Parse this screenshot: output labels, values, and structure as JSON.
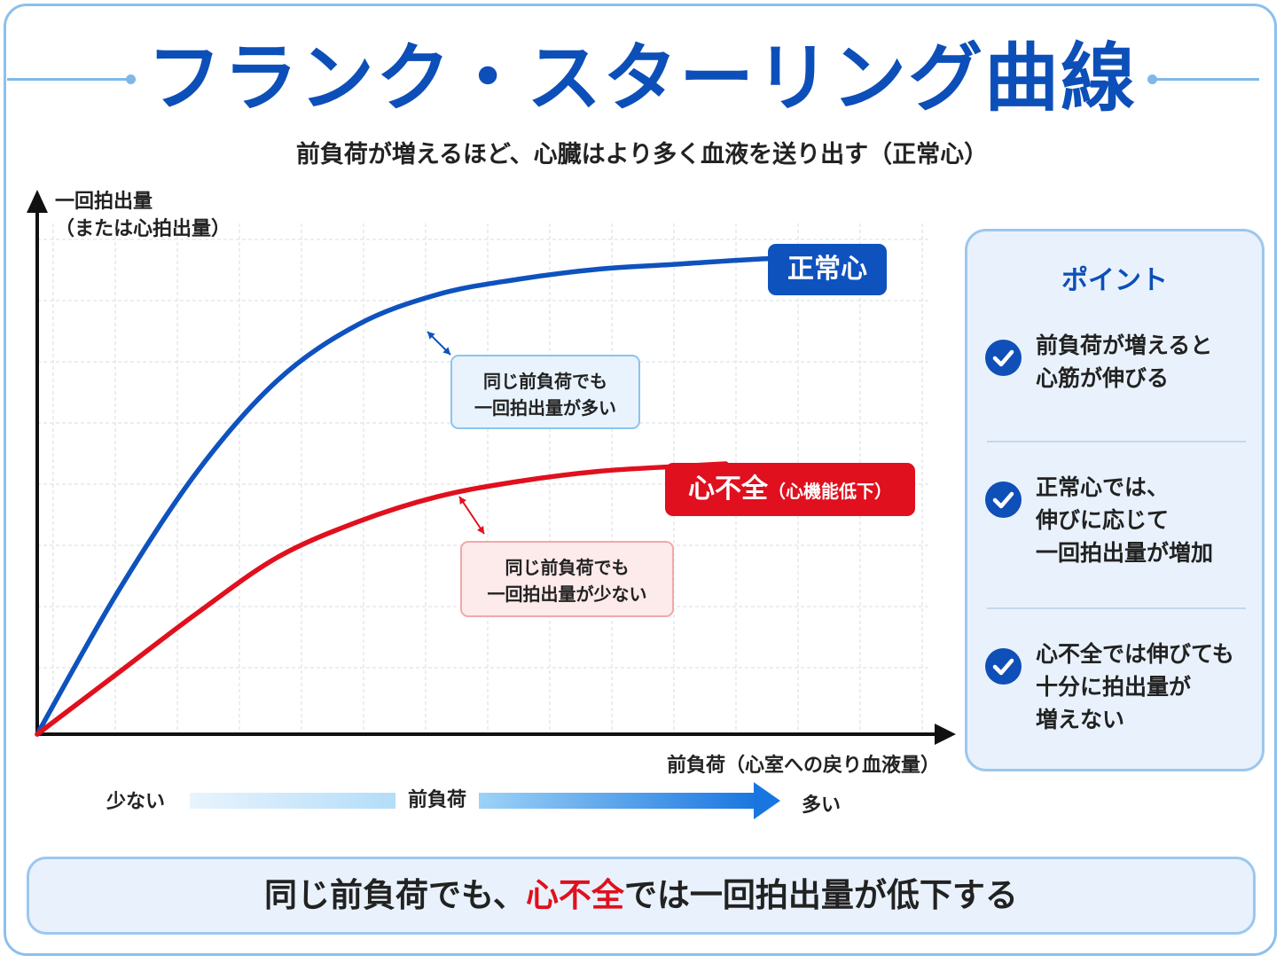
{
  "title": "フランク・スターリング曲線",
  "subtitle": "前負荷が増えるほど、心臓はより多く血液を送り出す（正常心）",
  "chart": {
    "y_axis_label_line1": "一回拍出量",
    "y_axis_label_line2": "（または心拍出量）",
    "x_axis_label": "前負荷（心室への戻り血液量）",
    "normal_label": "正常心",
    "hf_label_main": "心不全",
    "hf_label_sub": "（心機能低下）",
    "callout_normal_line1": "同じ前負荷でも",
    "callout_normal_line2": "一回拍出量が多い",
    "callout_hf_line1": "同じ前負荷でも",
    "callout_hf_line2": "一回拍出量が少ない",
    "colors": {
      "normal": "#0e52be",
      "hf": "#e0101e",
      "axis": "#111111",
      "grid": "#dde3ea"
    }
  },
  "chart_data": {
    "type": "line",
    "title": "フランク・スターリング曲線",
    "xlabel": "前負荷（心室への戻り血液量）",
    "ylabel": "一回拍出量（または心拍出量）",
    "xlim": [
      0,
      1
    ],
    "ylim": [
      0,
      1
    ],
    "grid": true,
    "series": [
      {
        "name": "正常心",
        "x": [
          0,
          0.1,
          0.2,
          0.3,
          0.4,
          0.5,
          0.6,
          0.7,
          0.8,
          0.9,
          1.0
        ],
        "y": [
          0,
          0.28,
          0.52,
          0.7,
          0.81,
          0.87,
          0.9,
          0.92,
          0.93,
          0.94,
          0.945
        ]
      },
      {
        "name": "心不全",
        "x": [
          0,
          0.1,
          0.2,
          0.3,
          0.4,
          0.5,
          0.6,
          0.7,
          0.8,
          0.86
        ],
        "y": [
          0,
          0.12,
          0.24,
          0.35,
          0.42,
          0.47,
          0.5,
          0.52,
          0.53,
          0.535
        ]
      }
    ]
  },
  "panel": {
    "title": "ポイント",
    "points": [
      {
        "line1": "前負荷が増えると",
        "line2": "心筋が伸びる",
        "line3": ""
      },
      {
        "line1": "正常心では、",
        "line2": "伸びに応じて",
        "line3": "一回拍出量が増加"
      },
      {
        "line1": "心不全では伸びても",
        "line2": "十分に拍出量が",
        "line3": "増えない"
      }
    ]
  },
  "scale": {
    "left": "少ない",
    "middle": "前負荷",
    "right": "多い"
  },
  "bottom": {
    "part1": "同じ前負荷でも、",
    "part2": "心不全",
    "part3": "では一回拍出量が低下する"
  }
}
